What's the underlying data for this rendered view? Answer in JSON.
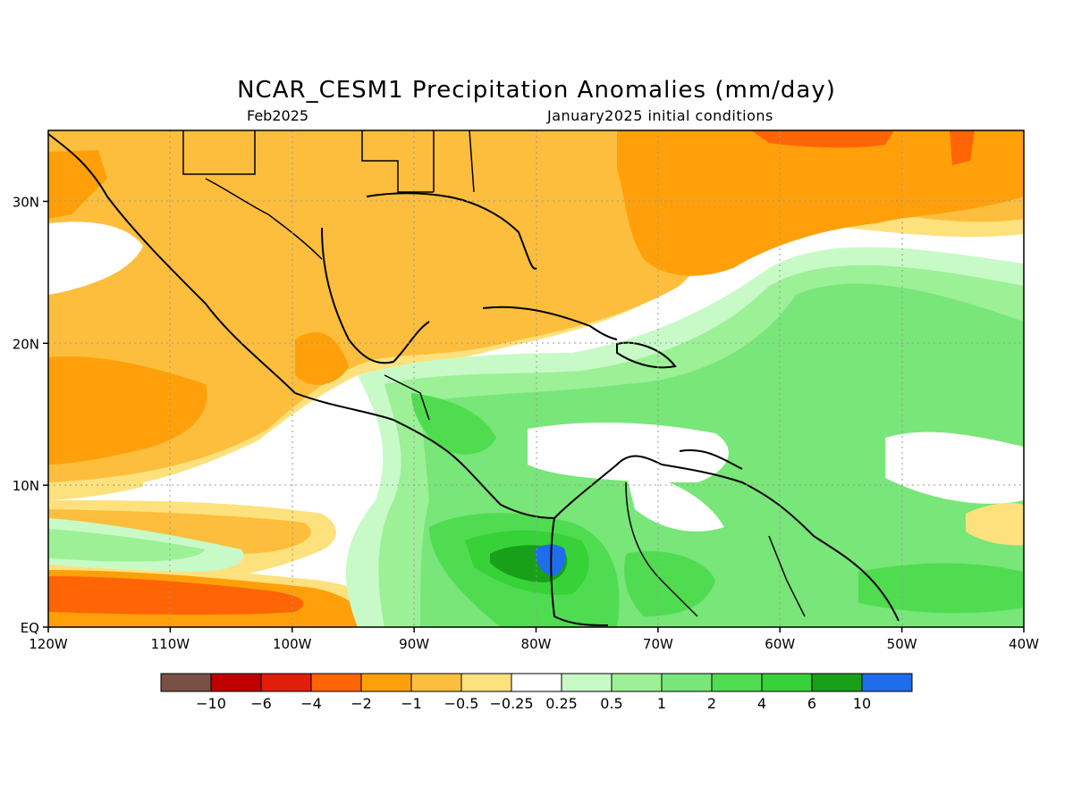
{
  "title": "NCAR_CESM1 Precipitation Anomalies (mm/day)",
  "subtitle_left": "Feb2025",
  "subtitle_right": "January2025 initial conditions",
  "map": {
    "lon_range": [
      -120,
      -40
    ],
    "lat_range": [
      0,
      35
    ],
    "x_tick_labels": [
      "120W",
      "110W",
      "100W",
      "90W",
      "80W",
      "70W",
      "60W",
      "50W",
      "40W"
    ],
    "y_tick_labels": [
      "EQ",
      "10N",
      "20N",
      "30N"
    ],
    "grid": "dotted"
  },
  "colorbar": {
    "colors": [
      "#7a5046",
      "#c00000",
      "#e01e0a",
      "#ff6405",
      "#ffa00a",
      "#fcbe3c",
      "#fde17c",
      "#ffffff",
      "#c8fac8",
      "#9cf096",
      "#78e678",
      "#50dc50",
      "#37d237",
      "#18a018",
      "#1e6eeb"
    ],
    "tick_labels": [
      "−10",
      "−6",
      "−4",
      "−2",
      "−1",
      "−0.5",
      "−0.25",
      "0.25",
      "0.5",
      "1",
      "2",
      "4",
      "6",
      "10"
    ]
  }
}
